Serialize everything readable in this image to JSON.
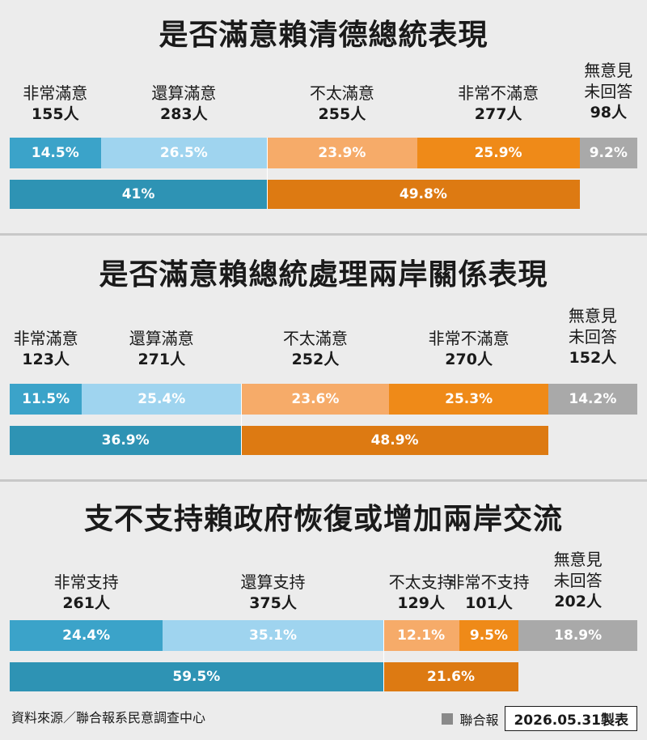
{
  "chart_data": [
    {
      "type": "bar",
      "stacked": true,
      "orientation": "horizontal",
      "title": "是否滿意賴清德總統表現",
      "segments": [
        {
          "label": "非常滿意",
          "count": "155人",
          "percent": "14.5%",
          "value": 14.5,
          "color": "#3ba3c9"
        },
        {
          "label": "還算滿意",
          "count": "283人",
          "percent": "26.5%",
          "value": 26.5,
          "color": "#9fd4ef"
        },
        {
          "label": "不太滿意",
          "count": "255人",
          "percent": "23.9%",
          "value": 23.9,
          "color": "#f6ab69"
        },
        {
          "label": "非常不滿意",
          "count": "277人",
          "percent": "25.9%",
          "value": 25.9,
          "color": "#ef8a18"
        },
        {
          "label": "無意見未回答",
          "count": "98人",
          "percent": "9.2%",
          "value": 9.2,
          "color": "#a9a9a9"
        }
      ],
      "totals": [
        {
          "percent": "41%",
          "value": 41,
          "color": "#2e93b4"
        },
        {
          "percent": "49.8%",
          "value": 49.8,
          "color": "#dd7a12"
        }
      ]
    },
    {
      "type": "bar",
      "stacked": true,
      "orientation": "horizontal",
      "title": "是否滿意賴總統處理兩岸關係表現",
      "segments": [
        {
          "label": "非常滿意",
          "count": "123人",
          "percent": "11.5%",
          "value": 11.5,
          "color": "#3ba3c9"
        },
        {
          "label": "還算滿意",
          "count": "271人",
          "percent": "25.4%",
          "value": 25.4,
          "color": "#9fd4ef"
        },
        {
          "label": "不太滿意",
          "count": "252人",
          "percent": "23.6%",
          "value": 23.6,
          "color": "#f6ab69"
        },
        {
          "label": "非常不滿意",
          "count": "270人",
          "percent": "25.3%",
          "value": 25.3,
          "color": "#ef8a18"
        },
        {
          "label": "無意見未回答",
          "count": "152人",
          "percent": "14.2%",
          "value": 14.2,
          "color": "#a9a9a9"
        }
      ],
      "totals": [
        {
          "percent": "36.9%",
          "value": 36.9,
          "color": "#2e93b4"
        },
        {
          "percent": "48.9%",
          "value": 48.9,
          "color": "#dd7a12"
        }
      ]
    },
    {
      "type": "bar",
      "stacked": true,
      "orientation": "horizontal",
      "title": "支不支持賴政府恢復或增加兩岸交流",
      "segments": [
        {
          "label": "非常支持",
          "count": "261人",
          "percent": "24.4%",
          "value": 24.4,
          "color": "#3ba3c9"
        },
        {
          "label": "還算支持",
          "count": "375人",
          "percent": "35.1%",
          "value": 35.1,
          "color": "#9fd4ef"
        },
        {
          "label": "不太支持",
          "count": "129人",
          "percent": "12.1%",
          "value": 12.1,
          "color": "#f6ab69"
        },
        {
          "label": "非常不支持",
          "count": "101人",
          "percent": "9.5%",
          "value": 9.5,
          "color": "#ef8a18"
        },
        {
          "label": "無意見未回答",
          "count": "202人",
          "percent": "18.9%",
          "value": 18.9,
          "color": "#a9a9a9"
        }
      ],
      "totals": [
        {
          "percent": "59.5%",
          "value": 59.5,
          "color": "#2e93b4"
        },
        {
          "percent": "21.6%",
          "value": 21.6,
          "color": "#dd7a12"
        }
      ]
    }
  ],
  "footer": {
    "source": "資料來源／聯合報系民意調查中心",
    "brand": "聯合報",
    "date": "2026.05.31製表"
  }
}
